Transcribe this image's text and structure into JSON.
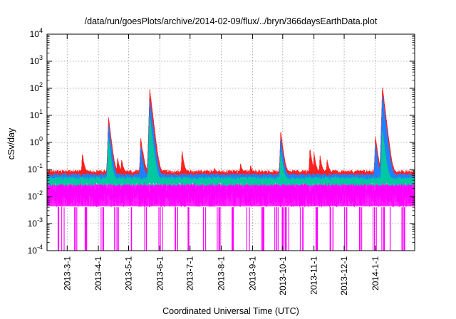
{
  "chart_data": {
    "type": "line",
    "title": "/data/run/goesPlots/archive/2014-02-09/flux/../bryn/366daysEarthData.plot",
    "xlabel": "Coordinated Universal Time (UTC)",
    "ylabel": "cSv/day",
    "yscale": "log",
    "ylim": [
      0.0001,
      10000
    ],
    "xlim": [
      "2013-02-09",
      "2014-02-09"
    ],
    "grid": true,
    "legend": "none",
    "y_ticks": [
      {
        "value": 0.0001,
        "base": "10",
        "exp": "-4"
      },
      {
        "value": 0.001,
        "base": "10",
        "exp": "-3"
      },
      {
        "value": 0.01,
        "base": "10",
        "exp": "-2"
      },
      {
        "value": 0.1,
        "base": "10",
        "exp": "-1"
      },
      {
        "value": 1,
        "base": "10",
        "exp": "0"
      },
      {
        "value": 10,
        "base": "10",
        "exp": "1"
      },
      {
        "value": 100,
        "base": "10",
        "exp": "2"
      },
      {
        "value": 1000,
        "base": "10",
        "exp": "3"
      },
      {
        "value": 10000,
        "base": "10",
        "exp": "4"
      }
    ],
    "x_ticks": [
      {
        "date": "2013-03-01",
        "label": "2013-3-1"
      },
      {
        "date": "2013-04-01",
        "label": "2013-4-1"
      },
      {
        "date": "2013-05-01",
        "label": "2013-5-1"
      },
      {
        "date": "2013-06-01",
        "label": "2013-6-1"
      },
      {
        "date": "2013-07-01",
        "label": "2013-7-1"
      },
      {
        "date": "2013-08-01",
        "label": "2013-8-1"
      },
      {
        "date": "2013-09-01",
        "label": "2013-9-1"
      },
      {
        "date": "2013-10-01",
        "label": "2013-10-1"
      },
      {
        "date": "2013-11-01",
        "label": "2013-11-1"
      },
      {
        "date": "2013-12-01",
        "label": "2013-12-1"
      },
      {
        "date": "2014-01-01",
        "label": "2014-1-1"
      }
    ],
    "series_colors": [
      "#ff00ff",
      "#00c8a0",
      "#2080ff",
      "#ff2020"
    ],
    "series": [
      {
        "color": "#ff2020",
        "baseline": 0.08,
        "peaks": [
          {
            "x": "2013-03-16",
            "y": 0.42
          },
          {
            "x": "2013-04-11",
            "y": 9.5
          },
          {
            "x": "2013-04-20",
            "y": 0.3
          },
          {
            "x": "2013-04-24",
            "y": 0.25
          },
          {
            "x": "2013-05-13",
            "y": 1.6
          },
          {
            "x": "2013-05-15",
            "y": 0.55
          },
          {
            "x": "2013-05-22",
            "y": 95
          },
          {
            "x": "2013-06-23",
            "y": 0.5
          },
          {
            "x": "2013-07-25",
            "y": 0.12
          },
          {
            "x": "2013-08-20",
            "y": 0.18
          },
          {
            "x": "2013-08-30",
            "y": 0.15
          },
          {
            "x": "2013-09-29",
            "y": 2.9
          },
          {
            "x": "2013-10-28",
            "y": 0.65
          },
          {
            "x": "2013-11-01",
            "y": 0.45
          },
          {
            "x": "2013-11-07",
            "y": 0.35
          },
          {
            "x": "2013-11-14",
            "y": 0.25
          },
          {
            "x": "2014-01-01",
            "y": 1.9
          },
          {
            "x": "2014-01-08",
            "y": 120
          }
        ]
      },
      {
        "color": "#2080ff",
        "baseline": 0.06,
        "peaks": [
          {
            "x": "2013-04-11",
            "y": 5
          },
          {
            "x": "2013-05-13",
            "y": 0.8
          },
          {
            "x": "2013-05-22",
            "y": 40
          },
          {
            "x": "2013-09-29",
            "y": 1.5
          },
          {
            "x": "2014-01-01",
            "y": 1
          },
          {
            "x": "2014-01-08",
            "y": 60
          }
        ]
      },
      {
        "color": "#00c8a0",
        "baseline": 0.045,
        "peaks": [
          {
            "x": "2013-04-11",
            "y": 1.5
          },
          {
            "x": "2013-05-22",
            "y": 10
          },
          {
            "x": "2013-09-29",
            "y": 0.5
          },
          {
            "x": "2014-01-08",
            "y": 3
          }
        ]
      },
      {
        "color": "#ff00ff",
        "band": [
          0.004,
          0.04
        ],
        "dropouts_to": 0.0001,
        "dropouts": [
          "2013-02-20",
          "2013-02-25",
          "2013-03-09",
          "2013-03-20",
          "2013-04-05",
          "2013-04-19",
          "2013-05-04",
          "2013-05-19",
          "2013-06-02",
          "2013-06-17",
          "2013-06-30",
          "2013-07-16",
          "2013-07-30",
          "2013-08-13",
          "2013-08-28",
          "2013-09-12",
          "2013-09-25",
          "2013-10-02",
          "2013-10-05",
          "2013-10-20",
          "2013-11-03",
          "2013-11-18",
          "2013-12-02",
          "2013-12-17",
          "2013-12-31",
          "2014-01-09",
          "2014-01-15",
          "2014-01-29"
        ]
      }
    ]
  }
}
